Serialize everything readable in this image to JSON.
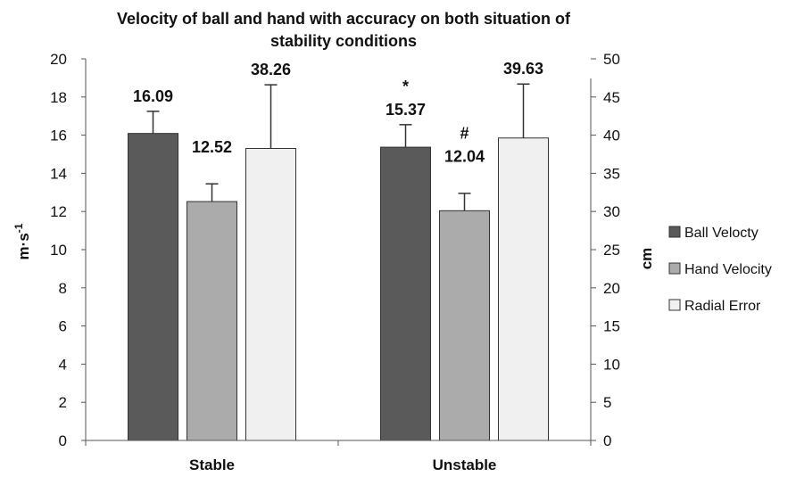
{
  "chart_data": {
    "type": "bar",
    "title_lines": [
      "Velocity of ball and hand with accuracy on both situation of",
      "stability conditions"
    ],
    "categories": [
      "Stable",
      "Unstable"
    ],
    "y_left": {
      "label_base": "m·s",
      "label_sup": "-1",
      "range": [
        0,
        20
      ],
      "ticks": [
        "0",
        "2",
        "4",
        "6",
        "8",
        "10",
        "12",
        "14",
        "16",
        "18",
        "20"
      ]
    },
    "y_right": {
      "label": "cm",
      "range": [
        0,
        50
      ],
      "ticks": [
        "0",
        "5",
        "10",
        "15",
        "20",
        "25",
        "30",
        "35",
        "40",
        "45",
        "50"
      ]
    },
    "series": [
      {
        "name": "Ball Velocty",
        "axis": "left",
        "color": "#5a5a5a",
        "values": [
          16.09,
          15.37
        ],
        "value_labels": [
          "16.09",
          "15.37"
        ],
        "error_upper": [
          17.25,
          16.55
        ],
        "marks": [
          "",
          "*"
        ]
      },
      {
        "name": "Hand Velocity",
        "axis": "left",
        "color": "#ababab",
        "values": [
          12.52,
          12.04
        ],
        "value_labels": [
          "12.52",
          "12.04"
        ],
        "error_upper": [
          13.45,
          12.95
        ],
        "marks": [
          "",
          "#"
        ]
      },
      {
        "name": "Radial Error",
        "axis": "right",
        "color": "#f0f0f0",
        "values": [
          38.26,
          39.63
        ],
        "value_labels": [
          "38.26",
          "39.63"
        ],
        "error_upper": [
          46.6,
          46.7
        ],
        "marks": [
          "",
          ""
        ]
      }
    ],
    "legend_position": "right",
    "grid": false
  }
}
